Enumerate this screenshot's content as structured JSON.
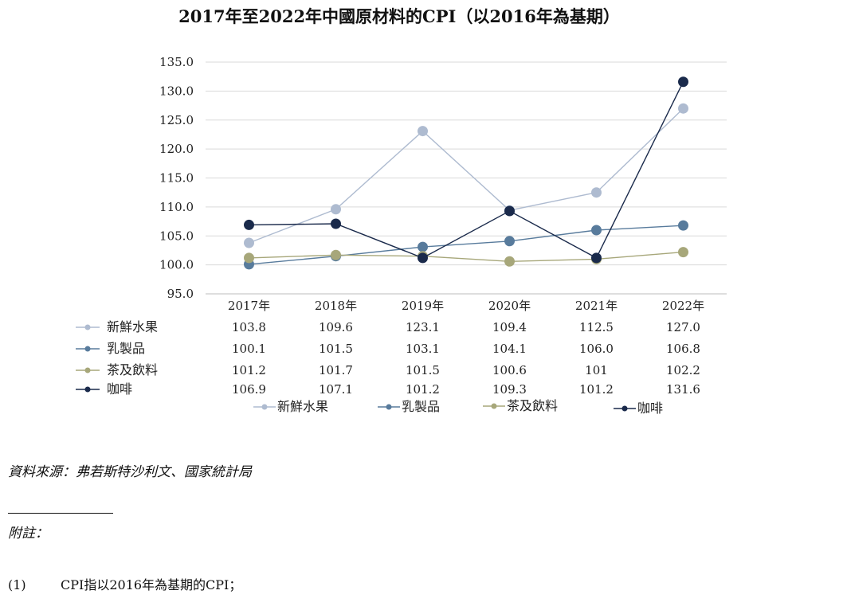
{
  "chart_data": {
    "type": "line",
    "title": "2017年至2022年中國原材料的CPI（以2016年為基期）",
    "categories": [
      "2017年",
      "2018年",
      "2019年",
      "2020年",
      "2021年",
      "2022年"
    ],
    "ylim": [
      95.0,
      135.0
    ],
    "yticks": [
      "95.0",
      "100.0",
      "105.0",
      "110.0",
      "115.0",
      "120.0",
      "125.0",
      "130.0",
      "135.0"
    ],
    "grid": true,
    "legend_position": "bottom",
    "series": [
      {
        "name": "新鮮水果",
        "color": "#aebbd0",
        "values": [
          103.8,
          109.6,
          123.1,
          109.4,
          112.5,
          127.0
        ],
        "table": [
          "103.8",
          "109.6",
          "123.1",
          "109.4",
          "112.5",
          "127.0"
        ]
      },
      {
        "name": "乳製品",
        "color": "#587b9c",
        "values": [
          100.1,
          101.5,
          103.1,
          104.1,
          106.0,
          106.8
        ],
        "table": [
          "100.1",
          "101.5",
          "103.1",
          "104.1",
          "106.0",
          "106.8"
        ]
      },
      {
        "name": "茶及飲料",
        "color": "#a7a77a",
        "values": [
          101.2,
          101.7,
          101.5,
          100.6,
          101,
          102.2
        ],
        "table": [
          "101.2",
          "101.7",
          "101.5",
          "100.6",
          "101",
          "102.2"
        ]
      },
      {
        "name": "咖啡",
        "color": "#1a2a4b",
        "values": [
          106.9,
          107.1,
          101.2,
          109.3,
          101.2,
          131.6
        ],
        "table": [
          "106.9",
          "107.1",
          "101.2",
          "109.3",
          "101.2",
          "131.6"
        ]
      }
    ]
  },
  "notes": {
    "source": "資料來源：弗若斯特沙利文、國家統計局",
    "heading": "附註：",
    "footnote_number": "(1)",
    "footnote_text": "CPI指以2016年為基期的CPI；"
  }
}
